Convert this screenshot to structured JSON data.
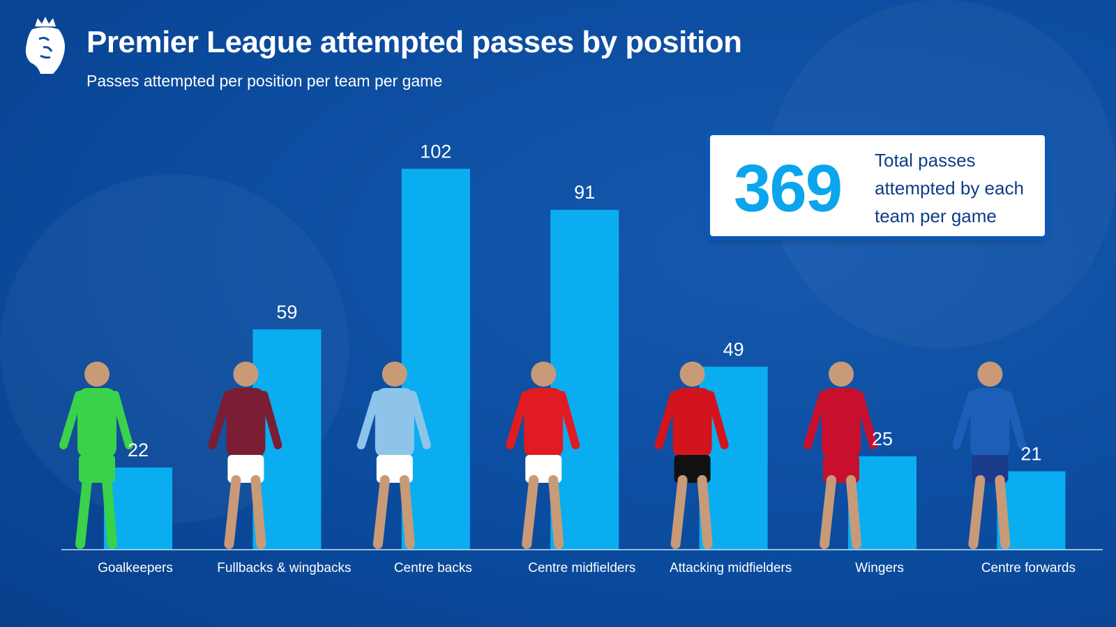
{
  "header": {
    "title": "Premier League attempted passes by position",
    "subtitle": "Passes attempted per position per team per game"
  },
  "stat_box": {
    "value": "369",
    "text": "Total passes attempted by each team per game"
  },
  "colors": {
    "background": "#0a4ea3",
    "bar": "#0aaef0",
    "stat": "#0aa5ec"
  },
  "chart_data": {
    "type": "bar",
    "title": "Premier League attempted passes by position",
    "subtitle": "Passes attempted per position per team per game",
    "categories": [
      "Goalkeepers",
      "Fullbacks & wingbacks",
      "Centre backs",
      "Centre midfielders",
      "Attacking midfielders",
      "Wingers",
      "Centre forwards"
    ],
    "values": [
      22,
      59,
      102,
      91,
      49,
      25,
      21
    ],
    "xlabel": "",
    "ylabel": "",
    "ylim": [
      0,
      102
    ],
    "grid": false,
    "player_colors": [
      [
        "#3ad24a",
        "#3ad24a"
      ],
      [
        "#7a1d35",
        "#ffffff"
      ],
      [
        "#8ec4ea",
        "#ffffff"
      ],
      [
        "#e01b22",
        "#ffffff"
      ],
      [
        "#d4141c",
        "#111111"
      ],
      [
        "#c8102e",
        "#c8102e"
      ],
      [
        "#1c5fb8",
        "#1c3a8a"
      ]
    ]
  }
}
